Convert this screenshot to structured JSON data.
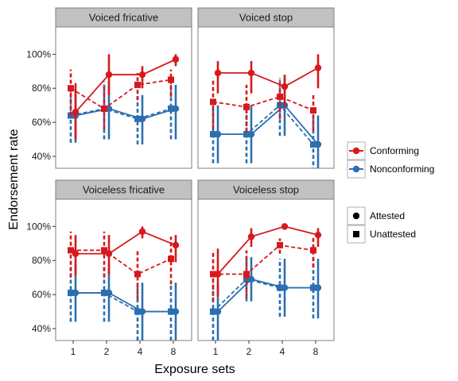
{
  "chart_data": {
    "type": "line",
    "xlabel": "Exposure sets",
    "ylabel": "Endorsement rate",
    "x_categories": [
      "1",
      "2",
      "4",
      "8"
    ],
    "y_ticks": [
      "40%",
      "60%",
      "80%",
      "100%"
    ],
    "ylim": [
      0.33,
      1.16
    ],
    "grid": false,
    "legend_color": {
      "position": "right",
      "entries": [
        {
          "label": "Conforming",
          "color": "#d7191c"
        },
        {
          "label": "Nonconforming",
          "color": "#2c6fb0"
        }
      ]
    },
    "legend_shape": {
      "position": "right",
      "entries": [
        {
          "label": "Attested",
          "shape": "circle"
        },
        {
          "label": "Unattested",
          "shape": "square"
        }
      ]
    },
    "panels": [
      {
        "title": "Voiced fricative",
        "series": [
          {
            "group": "Conforming",
            "type": "Attested",
            "y": [
              0.66,
              0.88,
              0.88,
              0.97
            ],
            "lo": [
              0.5,
              0.76,
              0.8,
              0.93
            ],
            "hi": [
              0.83,
              1.0,
              0.93,
              1.0
            ]
          },
          {
            "group": "Conforming",
            "type": "Unattested",
            "y": [
              0.8,
              0.68,
              0.82,
              0.85
            ],
            "lo": [
              0.64,
              0.56,
              0.73,
              0.75
            ],
            "hi": [
              0.91,
              0.82,
              0.89,
              0.91
            ]
          },
          {
            "group": "Nonconforming",
            "type": "Attested",
            "y": [
              0.64,
              0.68,
              0.62,
              0.68
            ],
            "lo": [
              0.48,
              0.5,
              0.47,
              0.5
            ],
            "hi": [
              0.79,
              0.84,
              0.76,
              0.82
            ]
          },
          {
            "group": "Nonconforming",
            "type": "Unattested",
            "y": [
              0.64,
              0.68,
              0.62,
              0.68
            ],
            "lo": [
              0.48,
              0.5,
              0.47,
              0.5
            ],
            "hi": [
              0.79,
              0.84,
              0.76,
              0.82
            ]
          }
        ]
      },
      {
        "title": "Voiced stop",
        "series": [
          {
            "group": "Conforming",
            "type": "Attested",
            "y": [
              0.89,
              0.89,
              0.81,
              0.92
            ],
            "lo": [
              0.77,
              0.77,
              0.69,
              0.8
            ],
            "hi": [
              0.96,
              0.96,
              0.88,
              1.0
            ]
          },
          {
            "group": "Conforming",
            "type": "Unattested",
            "y": [
              0.72,
              0.69,
              0.75,
              0.67
            ],
            "lo": [
              0.56,
              0.54,
              0.62,
              0.55
            ],
            "hi": [
              0.86,
              0.82,
              0.85,
              0.77
            ]
          },
          {
            "group": "Nonconforming",
            "type": "Attested",
            "y": [
              0.53,
              0.53,
              0.7,
              0.47
            ],
            "lo": [
              0.36,
              0.36,
              0.52,
              0.31
            ],
            "hi": [
              0.7,
              0.7,
              0.86,
              0.64
            ]
          },
          {
            "group": "Nonconforming",
            "type": "Unattested",
            "y": [
              0.53,
              0.53,
              0.7,
              0.47
            ],
            "lo": [
              0.36,
              0.36,
              0.52,
              0.31
            ],
            "hi": [
              0.7,
              0.7,
              0.86,
              0.64
            ]
          }
        ]
      },
      {
        "title": "Voiceless fricative",
        "series": [
          {
            "group": "Conforming",
            "type": "Attested",
            "y": [
              0.84,
              0.84,
              0.97,
              0.89
            ],
            "lo": [
              0.71,
              0.72,
              0.93,
              0.79
            ],
            "hi": [
              0.95,
              0.95,
              1.0,
              0.95
            ]
          },
          {
            "group": "Conforming",
            "type": "Unattested",
            "y": [
              0.86,
              0.86,
              0.72,
              0.81
            ],
            "lo": [
              0.7,
              0.7,
              0.57,
              0.66
            ],
            "hi": [
              0.97,
              0.97,
              0.86,
              0.94
            ]
          },
          {
            "group": "Nonconforming",
            "type": "Attested",
            "y": [
              0.61,
              0.61,
              0.5,
              0.5
            ],
            "lo": [
              0.44,
              0.44,
              0.33,
              0.33
            ],
            "hi": [
              0.78,
              0.78,
              0.67,
              0.67
            ]
          },
          {
            "group": "Nonconforming",
            "type": "Unattested",
            "y": [
              0.61,
              0.61,
              0.5,
              0.5
            ],
            "lo": [
              0.44,
              0.44,
              0.33,
              0.33
            ],
            "hi": [
              0.78,
              0.78,
              0.67,
              0.67
            ]
          }
        ]
      },
      {
        "title": "Voiceless stop",
        "series": [
          {
            "group": "Conforming",
            "type": "Attested",
            "y": [
              0.72,
              0.94,
              1.0,
              0.95
            ],
            "lo": [
              0.59,
              0.88,
              0.98,
              0.88
            ],
            "hi": [
              0.87,
              0.99,
              1.0,
              0.99
            ]
          },
          {
            "group": "Conforming",
            "type": "Unattested",
            "y": [
              0.72,
              0.72,
              0.89,
              0.86
            ],
            "lo": [
              0.56,
              0.58,
              0.84,
              0.76
            ],
            "hi": [
              0.86,
              0.86,
              0.93,
              0.94
            ]
          },
          {
            "group": "Nonconforming",
            "type": "Attested",
            "y": [
              0.5,
              0.69,
              0.64,
              0.64
            ],
            "lo": [
              0.33,
              0.56,
              0.47,
              0.46
            ],
            "hi": [
              0.67,
              0.82,
              0.81,
              0.81
            ]
          },
          {
            "group": "Nonconforming",
            "type": "Unattested",
            "y": [
              0.5,
              0.69,
              0.64,
              0.64
            ],
            "lo": [
              0.33,
              0.56,
              0.47,
              0.46
            ],
            "hi": [
              0.67,
              0.82,
              0.81,
              0.81
            ]
          }
        ]
      }
    ]
  }
}
